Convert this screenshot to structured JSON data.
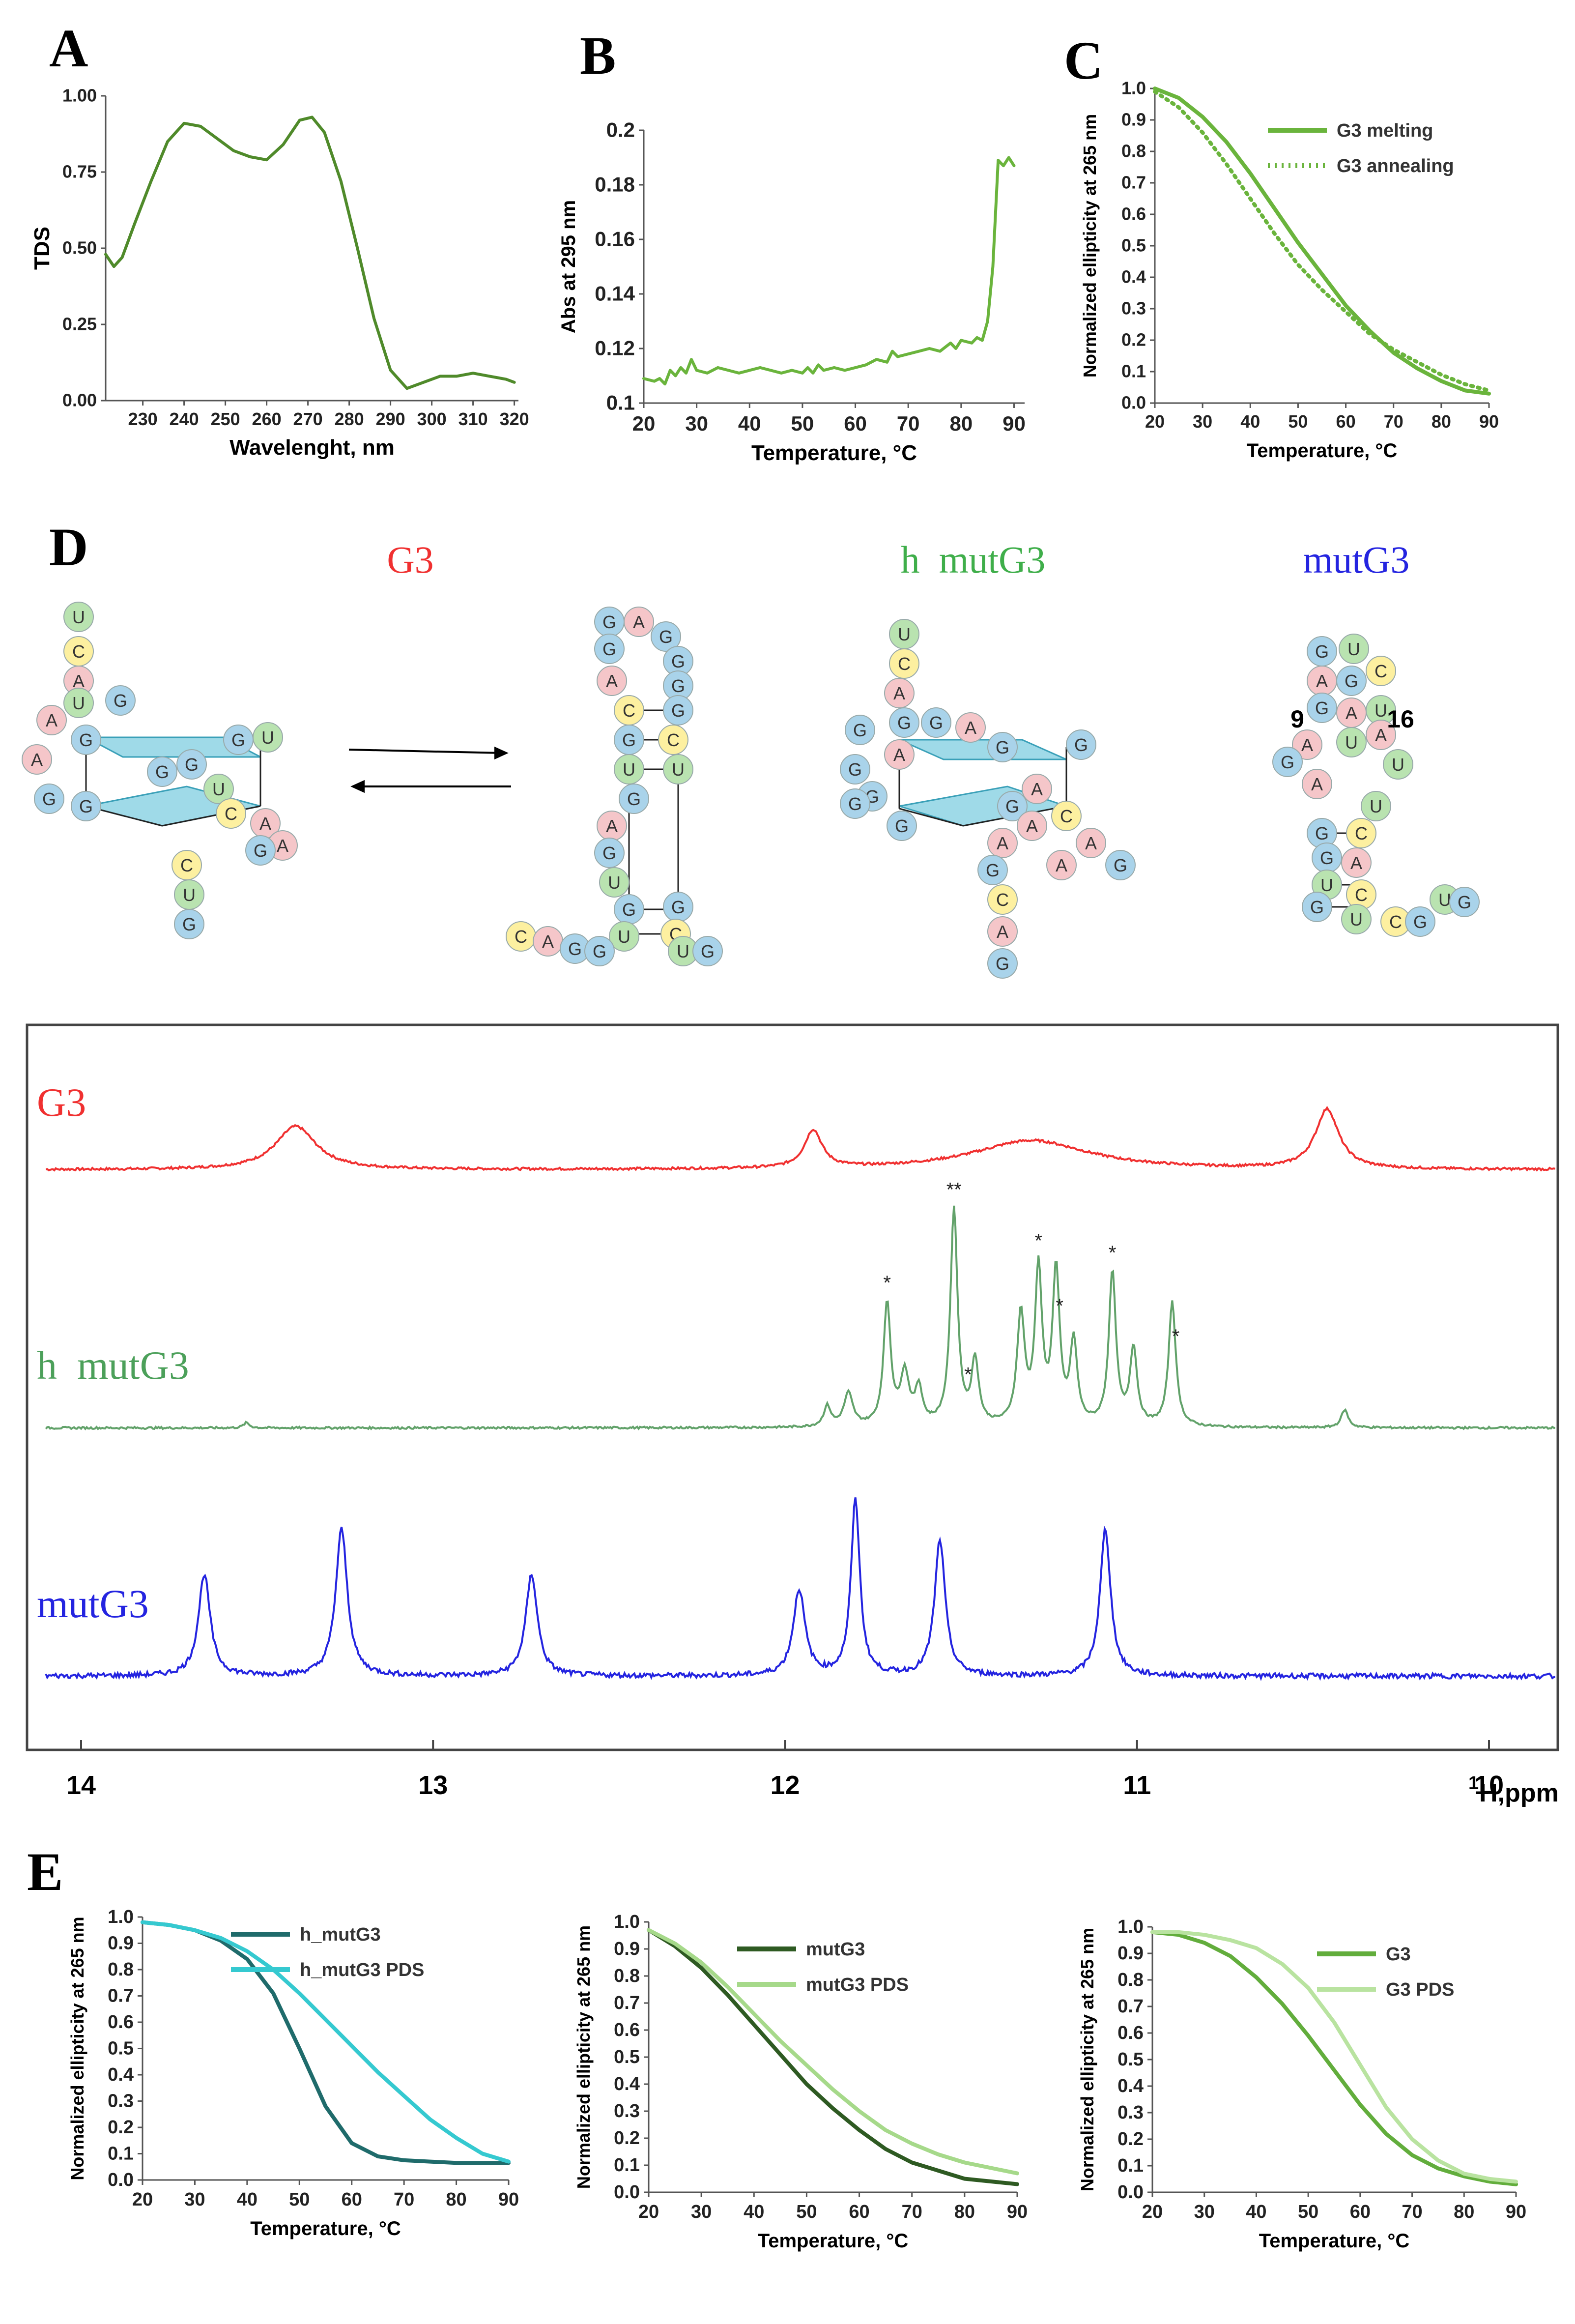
{
  "panel_labels": {
    "A": "A",
    "B": "B",
    "C": "C",
    "D": "D",
    "E": "E"
  },
  "colors": {
    "panelA": "#4f8a2a",
    "panelB": "#6ab43c",
    "panelC": "#6ab43c",
    "G3": "#f03030",
    "hmut": "#62a26a",
    "mut": "#2424e0",
    "nucG": "#a9d3ea",
    "nucA": "#f5c6c9",
    "nucC": "#fdf0a0",
    "nucU": "#b9e3b0",
    "quad": "#7fcde0",
    "E1a": "#1f6b6b",
    "E1b": "#35c9d0",
    "E2a": "#2e5a22",
    "E2b": "#a6d98a",
    "E3a": "#62ad3c",
    "E3b": "#b9e3a0"
  },
  "chart_data": [
    {
      "id": "A",
      "type": "line",
      "title": "",
      "xlabel": "Wavelenght, nm",
      "ylabel": "TDS",
      "xlim": [
        221,
        321
      ],
      "ylim": [
        0,
        1
      ],
      "xticks": [
        230,
        240,
        250,
        260,
        270,
        280,
        290,
        300,
        310,
        320
      ],
      "yticks": [
        0,
        0.25,
        0.5,
        0.75,
        1
      ],
      "yticklabels": [
        "0.00",
        "0.25",
        "0.50",
        "0.75",
        "1.00"
      ],
      "x": [
        221,
        223,
        225,
        228,
        232,
        236,
        240,
        244,
        248,
        252,
        256,
        260,
        264,
        268,
        271,
        274,
        278,
        282,
        286,
        290,
        294,
        298,
        302,
        306,
        310,
        314,
        318,
        320
      ],
      "y": [
        0.48,
        0.44,
        0.47,
        0.58,
        0.72,
        0.85,
        0.91,
        0.9,
        0.86,
        0.82,
        0.8,
        0.79,
        0.84,
        0.92,
        0.93,
        0.88,
        0.72,
        0.5,
        0.27,
        0.1,
        0.04,
        0.06,
        0.08,
        0.08,
        0.09,
        0.08,
        0.07,
        0.06
      ]
    },
    {
      "id": "B",
      "type": "line",
      "title": "",
      "xlabel": "Temperature, °C",
      "ylabel": "Abs at 295 nm",
      "xlim": [
        20,
        92
      ],
      "ylim": [
        0.1,
        0.2
      ],
      "xticks": [
        20,
        30,
        40,
        50,
        60,
        70,
        80,
        90
      ],
      "yticks": [
        0.1,
        0.12,
        0.14,
        0.16,
        0.18,
        0.2
      ],
      "yticklabels": [
        "0.1",
        "0.12",
        "0.14",
        "0.16",
        "0.18",
        "0.2"
      ],
      "x": [
        20,
        22,
        23,
        24,
        25,
        26,
        27,
        28,
        29,
        30,
        32,
        34,
        36,
        38,
        40,
        42,
        44,
        46,
        48,
        50,
        51,
        52,
        53,
        54,
        56,
        58,
        60,
        62,
        64,
        66,
        67,
        68,
        70,
        72,
        74,
        76,
        78,
        79,
        80,
        82,
        83,
        84,
        85,
        86,
        87,
        88,
        89,
        90
      ],
      "y": [
        0.109,
        0.108,
        0.109,
        0.107,
        0.112,
        0.11,
        0.113,
        0.111,
        0.116,
        0.112,
        0.111,
        0.113,
        0.112,
        0.111,
        0.112,
        0.113,
        0.112,
        0.111,
        0.112,
        0.111,
        0.113,
        0.111,
        0.114,
        0.112,
        0.113,
        0.112,
        0.113,
        0.114,
        0.116,
        0.115,
        0.119,
        0.117,
        0.118,
        0.119,
        0.12,
        0.119,
        0.122,
        0.12,
        0.123,
        0.122,
        0.124,
        0.123,
        0.13,
        0.15,
        0.189,
        0.187,
        0.19,
        0.187
      ]
    },
    {
      "id": "C",
      "type": "line",
      "title": "",
      "xlabel": "Temperature, °C",
      "ylabel": "Normalized ellipticity at 265 nm",
      "xlim": [
        20,
        90
      ],
      "ylim": [
        0,
        1
      ],
      "xticks": [
        20,
        30,
        40,
        50,
        60,
        70,
        80,
        90
      ],
      "yticks": [
        0,
        0.1,
        0.2,
        0.3,
        0.4,
        0.5,
        0.6,
        0.7,
        0.8,
        0.9,
        1
      ],
      "yticklabels": [
        "0.0",
        "0.1",
        "0.2",
        "0.3",
        "0.4",
        "0.5",
        "0.6",
        "0.7",
        "0.8",
        "0.9",
        "1.0"
      ],
      "legend": "top-right",
      "series": [
        {
          "name": "G3 melting",
          "style": "solid",
          "x": [
            20,
            25,
            30,
            35,
            40,
            45,
            50,
            55,
            60,
            65,
            70,
            75,
            80,
            85,
            90
          ],
          "y": [
            1.0,
            0.97,
            0.91,
            0.83,
            0.73,
            0.62,
            0.51,
            0.41,
            0.31,
            0.23,
            0.16,
            0.11,
            0.07,
            0.04,
            0.03
          ]
        },
        {
          "name": "G3 annealing",
          "style": "dotted",
          "x": [
            20,
            25,
            30,
            35,
            40,
            45,
            50,
            55,
            60,
            65,
            70,
            75,
            80,
            85,
            90
          ],
          "y": [
            0.99,
            0.94,
            0.86,
            0.76,
            0.65,
            0.54,
            0.44,
            0.36,
            0.29,
            0.22,
            0.17,
            0.13,
            0.09,
            0.06,
            0.04
          ]
        }
      ]
    },
    {
      "id": "NMR",
      "type": "line",
      "title": "",
      "xlabel": "1H,ppm",
      "ylabel": "",
      "xlim": [
        14.1,
        9.6
      ],
      "xticks": [
        14,
        13,
        12,
        11,
        10
      ],
      "series": [
        {
          "name": "G3",
          "peaks": [
            [
              13.39,
              0.4,
              0.07
            ],
            [
              11.92,
              0.35,
              0.03
            ],
            [
              11.3,
              0.27,
              0.2
            ],
            [
              10.46,
              0.55,
              0.04
            ]
          ]
        },
        {
          "name": "h mutG3",
          "peaks": [
            [
              11.88,
              0.08,
              0.012
            ],
            [
              11.82,
              0.13,
              0.015
            ],
            [
              11.71,
              0.48,
              0.012
            ],
            [
              11.66,
              0.2,
              0.015
            ],
            [
              11.62,
              0.14,
              0.012
            ],
            [
              11.52,
              0.85,
              0.012
            ],
            [
              11.46,
              0.25,
              0.012
            ],
            [
              11.33,
              0.43,
              0.013
            ],
            [
              11.28,
              0.6,
              0.012
            ],
            [
              11.23,
              0.6,
              0.012
            ],
            [
              11.18,
              0.32,
              0.012
            ],
            [
              11.07,
              0.6,
              0.012
            ],
            [
              11.01,
              0.3,
              0.012
            ],
            [
              10.9,
              0.49,
              0.012
            ],
            [
              10.41,
              0.07,
              0.012
            ],
            [
              13.53,
              0.02,
              0.01
            ]
          ],
          "stars": [
            [
              11.71,
              "*"
            ],
            [
              11.52,
              "**"
            ],
            [
              11.48,
              "*"
            ],
            [
              11.28,
              "*"
            ],
            [
              11.22,
              "*"
            ],
            [
              11.07,
              "*"
            ],
            [
              10.89,
              "*"
            ]
          ]
        },
        {
          "name": "mutG3",
          "peaks": [
            [
              13.65,
              0.45,
              0.02
            ],
            [
              13.26,
              0.65,
              0.02
            ],
            [
              12.72,
              0.45,
              0.02
            ],
            [
              11.96,
              0.38,
              0.02
            ],
            [
              11.8,
              0.78,
              0.015
            ],
            [
              11.56,
              0.6,
              0.018
            ],
            [
              11.09,
              0.65,
              0.018
            ]
          ]
        }
      ]
    },
    {
      "id": "E1",
      "type": "line",
      "title": "",
      "xlabel": "Temperature, °C",
      "ylabel": "Normalized ellipticity at 265 nm",
      "xlim": [
        20,
        90
      ],
      "ylim": [
        0,
        1
      ],
      "xticks": [
        20,
        30,
        40,
        50,
        60,
        70,
        80,
        90
      ],
      "yticks": [
        0,
        0.1,
        0.2,
        0.3,
        0.4,
        0.5,
        0.6,
        0.7,
        0.8,
        0.9,
        1
      ],
      "yticklabels": [
        "0.0",
        "0.1",
        "0.2",
        "0.3",
        "0.4",
        "0.5",
        "0.6",
        "0.7",
        "0.8",
        "0.9",
        "1.0"
      ],
      "legend": "top-right",
      "series": [
        {
          "name": "h_mutG3",
          "x": [
            20,
            25,
            30,
            35,
            40,
            45,
            50,
            55,
            60,
            65,
            70,
            75,
            80,
            85,
            90
          ],
          "y": [
            0.98,
            0.97,
            0.95,
            0.91,
            0.84,
            0.71,
            0.5,
            0.28,
            0.14,
            0.09,
            0.075,
            0.07,
            0.065,
            0.065,
            0.065
          ]
        },
        {
          "name": "h_mutG3 PDS",
          "x": [
            20,
            25,
            30,
            35,
            40,
            45,
            50,
            55,
            60,
            65,
            70,
            75,
            80,
            85,
            90
          ],
          "y": [
            0.98,
            0.97,
            0.95,
            0.92,
            0.87,
            0.8,
            0.71,
            0.61,
            0.51,
            0.41,
            0.32,
            0.23,
            0.16,
            0.1,
            0.07
          ]
        }
      ]
    },
    {
      "id": "E2",
      "type": "line",
      "title": "",
      "xlabel": "Temperature, °C",
      "ylabel": "Normalized ellipticity at 265 nm",
      "xlim": [
        20,
        90
      ],
      "ylim": [
        0,
        1
      ],
      "xticks": [
        20,
        30,
        40,
        50,
        60,
        70,
        80,
        90
      ],
      "yticks": [
        0,
        0.1,
        0.2,
        0.3,
        0.4,
        0.5,
        0.6,
        0.7,
        0.8,
        0.9,
        1
      ],
      "yticklabels": [
        "0.0",
        "0.1",
        "0.2",
        "0.3",
        "0.4",
        "0.5",
        "0.6",
        "0.7",
        "0.8",
        "0.9",
        "1.0"
      ],
      "legend": "top-right",
      "series": [
        {
          "name": "mutG3",
          "x": [
            20,
            25,
            30,
            35,
            40,
            45,
            50,
            55,
            60,
            65,
            70,
            75,
            80,
            85,
            90
          ],
          "y": [
            0.97,
            0.91,
            0.83,
            0.73,
            0.62,
            0.51,
            0.4,
            0.31,
            0.23,
            0.16,
            0.11,
            0.08,
            0.05,
            0.04,
            0.03
          ]
        },
        {
          "name": "mutG3 PDS",
          "x": [
            20,
            25,
            30,
            35,
            40,
            45,
            50,
            55,
            60,
            65,
            70,
            75,
            80,
            85,
            90
          ],
          "y": [
            0.97,
            0.92,
            0.85,
            0.76,
            0.66,
            0.56,
            0.47,
            0.38,
            0.3,
            0.23,
            0.18,
            0.14,
            0.11,
            0.09,
            0.07
          ]
        }
      ]
    },
    {
      "id": "E3",
      "type": "line",
      "title": "",
      "xlabel": "Temperature, °C",
      "ylabel": "Normalized ellipticity at 265 nm",
      "xlim": [
        20,
        90
      ],
      "ylim": [
        0,
        1
      ],
      "xticks": [
        20,
        30,
        40,
        50,
        60,
        70,
        80,
        90
      ],
      "yticks": [
        0,
        0.1,
        0.2,
        0.3,
        0.4,
        0.5,
        0.6,
        0.7,
        0.8,
        0.9,
        1
      ],
      "yticklabels": [
        "0.0",
        "0.1",
        "0.2",
        "0.3",
        "0.4",
        "0.5",
        "0.6",
        "0.7",
        "0.8",
        "0.9",
        "1.0"
      ],
      "legend": "top-right",
      "series": [
        {
          "name": "G3",
          "x": [
            20,
            25,
            30,
            35,
            40,
            45,
            50,
            55,
            60,
            65,
            70,
            75,
            80,
            85,
            90
          ],
          "y": [
            0.98,
            0.97,
            0.94,
            0.89,
            0.81,
            0.71,
            0.59,
            0.46,
            0.33,
            0.22,
            0.14,
            0.09,
            0.06,
            0.04,
            0.03
          ]
        },
        {
          "name": "G3 PDS",
          "x": [
            20,
            25,
            30,
            35,
            40,
            45,
            50,
            55,
            60,
            65,
            70,
            75,
            80,
            85,
            90
          ],
          "y": [
            0.98,
            0.98,
            0.97,
            0.95,
            0.92,
            0.86,
            0.77,
            0.64,
            0.48,
            0.32,
            0.2,
            0.12,
            0.07,
            0.05,
            0.04
          ]
        }
      ]
    }
  ],
  "panelD": {
    "titles": [
      "G3",
      "h  mutG3",
      "mutG3"
    ],
    "numbers": [
      "9",
      "16"
    ],
    "structures": [
      {
        "name": "G3 quadruplex",
        "nts": [
          "U",
          "C",
          "A",
          "G",
          "U",
          "A",
          "G",
          "G",
          "U",
          "G",
          "G",
          "A",
          "G",
          "G",
          "U",
          "C",
          "A",
          "A",
          "G",
          "C",
          "U",
          "G"
        ]
      },
      {
        "name": "G3 hairpin",
        "nts": [
          "G",
          "A",
          "G",
          "G",
          "G",
          "A",
          "C",
          "G",
          "G",
          "C",
          "G",
          "U",
          "U",
          "G",
          "A",
          "G",
          "U",
          "G",
          "G",
          "C",
          "U",
          "C",
          "A",
          "G",
          "G",
          "U",
          "G"
        ]
      },
      {
        "name": "h mutG3",
        "nts": [
          "U",
          "C",
          "A",
          "G",
          "G",
          "A",
          "G",
          "A",
          "G",
          "G",
          "G",
          "G",
          "A",
          "G",
          "G",
          "G",
          "A",
          "C",
          "A",
          "A",
          "G",
          "A",
          "G",
          "C",
          "A",
          "G"
        ]
      },
      {
        "name": "mutG3",
        "nts": [
          "G",
          "U",
          "C",
          "A",
          "G",
          "U",
          "G",
          "A",
          "A",
          "U",
          "A",
          "G",
          "U",
          "A",
          "U",
          "G",
          "C",
          "G",
          "A",
          "U",
          "C",
          "G",
          "U",
          "C",
          "U",
          "G",
          "G"
        ]
      }
    ]
  },
  "nmr_labels": [
    "G3",
    "h  mutG3",
    "mutG3"
  ],
  "nmr_axis_unit_super": "1",
  "nmr_axis_unit": "H,ppm"
}
